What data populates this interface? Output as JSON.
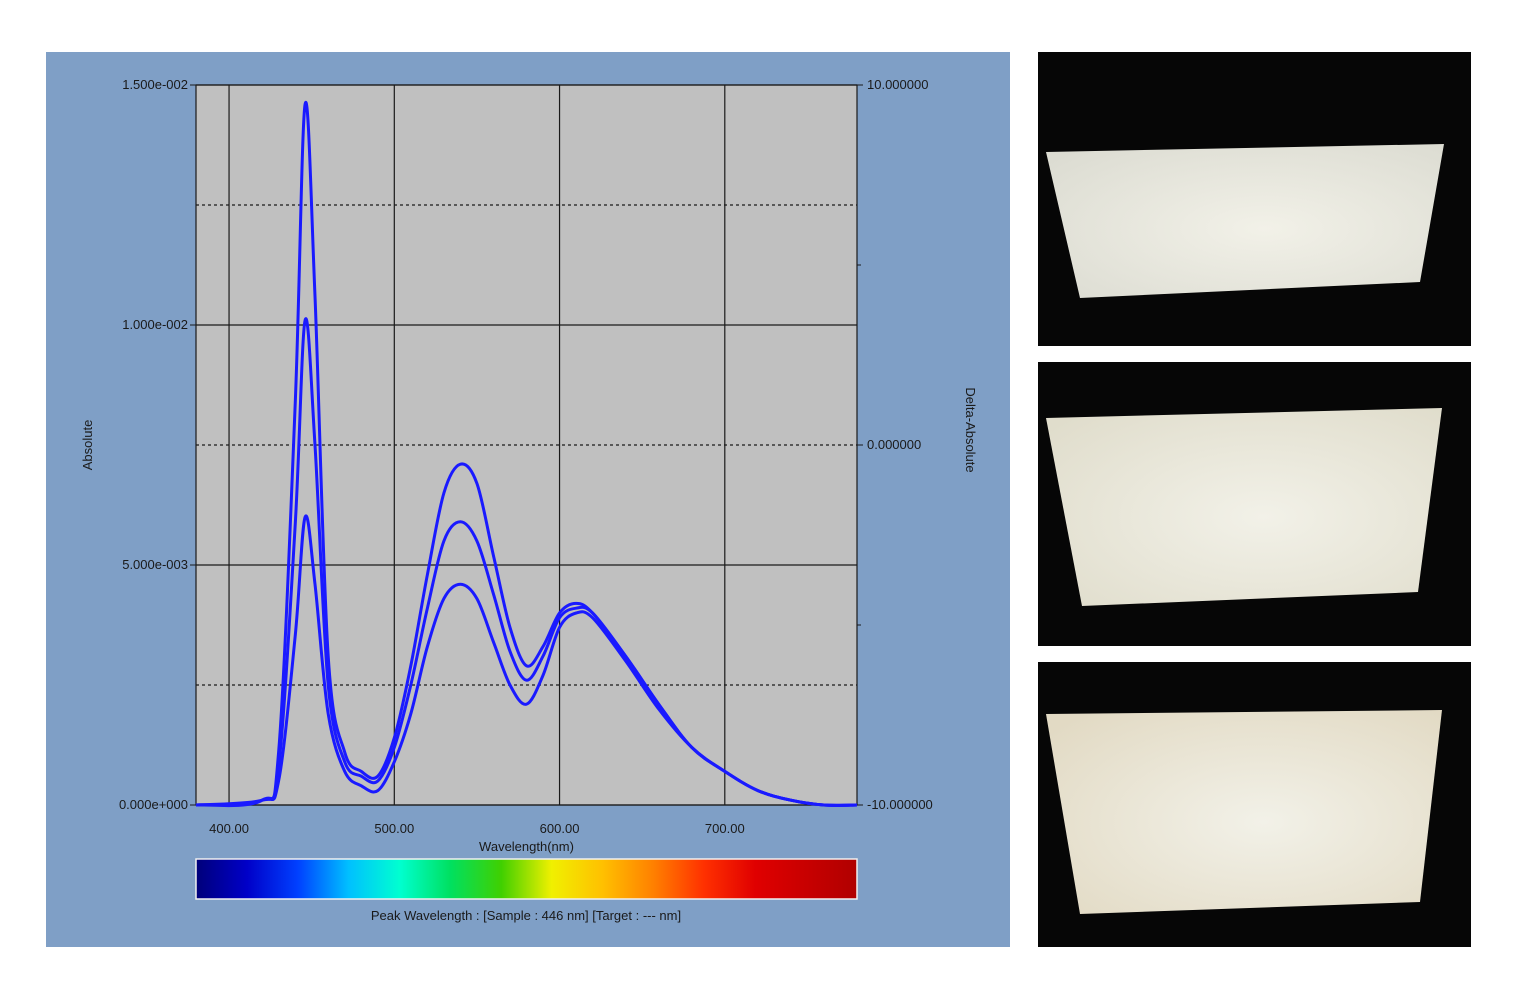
{
  "colors": {
    "panel_background": "#7f9fc6",
    "plot_background": "#c0c0c0",
    "series_color": "#1a1aff",
    "photo_background": "#060606"
  },
  "chart_data": {
    "type": "line",
    "xlabel": "Wavelength(nm)",
    "ylabel": "Absolute",
    "y2label": "Delta-Absolute",
    "xlim": [
      380,
      780
    ],
    "ylim": [
      0,
      0.015
    ],
    "y2lim": [
      -10,
      10
    ],
    "x_ticks": [
      400,
      500,
      600,
      700
    ],
    "x_tick_labels": [
      "400.00",
      "500.00",
      "600.00",
      "700.00"
    ],
    "y_ticks": [
      0,
      0.005,
      0.01,
      0.015
    ],
    "y_tick_labels": [
      "0.000e+000",
      "5.000e-003",
      "1.000e-002",
      "1.500e-002"
    ],
    "y_minor_gridlines": [
      0.0025,
      0.0075,
      0.0125
    ],
    "y2_ticks": [
      -10,
      0,
      10
    ],
    "y2_tick_labels": [
      "-10.000000",
      "0.000000",
      "10.000000"
    ],
    "grid": true,
    "legend": "none",
    "series": [
      {
        "x": [
          380,
          420,
          430,
          440,
          446,
          452,
          460,
          470,
          480,
          490,
          500,
          510,
          520,
          530,
          540,
          550,
          560,
          570,
          580,
          590,
          600,
          610,
          620,
          640,
          660,
          680,
          700,
          720,
          740,
          760,
          780
        ],
        "values": [
          0.0,
          0.0001,
          0.0011,
          0.0083,
          0.0146,
          0.0106,
          0.0031,
          0.0011,
          0.0007,
          0.0006,
          0.0014,
          0.0029,
          0.0048,
          0.0065,
          0.0071,
          0.0067,
          0.0052,
          0.0037,
          0.0029,
          0.0033,
          0.004,
          0.0042,
          0.004,
          0.0031,
          0.0021,
          0.0012,
          0.0007,
          0.0003,
          0.0001,
          0.0,
          0.0
        ]
      },
      {
        "x": [
          380,
          420,
          430,
          440,
          446,
          452,
          460,
          470,
          480,
          490,
          500,
          510,
          520,
          530,
          540,
          550,
          560,
          570,
          580,
          590,
          600,
          610,
          620,
          640,
          660,
          680,
          700,
          720,
          740,
          760,
          780
        ],
        "values": [
          0.0,
          0.0001,
          0.0008,
          0.0058,
          0.0101,
          0.0075,
          0.0025,
          0.0009,
          0.0006,
          0.0005,
          0.0012,
          0.0025,
          0.0041,
          0.0055,
          0.0059,
          0.0055,
          0.0044,
          0.0032,
          0.0026,
          0.0031,
          0.0039,
          0.0041,
          0.004,
          0.0031,
          0.0021,
          0.0012,
          0.0007,
          0.0003,
          0.0001,
          0.0,
          0.0
        ]
      },
      {
        "x": [
          380,
          420,
          430,
          440,
          446,
          452,
          460,
          470,
          480,
          490,
          500,
          510,
          520,
          530,
          540,
          550,
          560,
          570,
          580,
          590,
          600,
          610,
          620,
          640,
          660,
          680,
          700,
          720,
          740,
          760,
          780
        ],
        "values": [
          0.0,
          0.0001,
          0.0005,
          0.0035,
          0.006,
          0.0046,
          0.0019,
          0.0007,
          0.0004,
          0.0003,
          0.0009,
          0.0019,
          0.0033,
          0.0043,
          0.0046,
          0.0043,
          0.0034,
          0.0025,
          0.0021,
          0.0027,
          0.0037,
          0.004,
          0.0039,
          0.003,
          0.002,
          0.0012,
          0.0007,
          0.0003,
          0.0001,
          0.0,
          0.0
        ]
      }
    ],
    "colorbar_stops": [
      "#00007a",
      "#0000c8",
      "#0040ff",
      "#00c0ff",
      "#00ffd0",
      "#00e060",
      "#40d000",
      "#f0f000",
      "#ffc000",
      "#ff8000",
      "#ff3000",
      "#e00000",
      "#c80000",
      "#b00000"
    ],
    "caption": "Peak Wavelength : [Sample : 446 nm] [Target : --- nm]"
  },
  "photos": [
    {
      "name": "panel-photo-1",
      "tint": "#dcdcd2"
    },
    {
      "name": "panel-photo-2",
      "tint": "#e0ddcc"
    },
    {
      "name": "panel-photo-3",
      "tint": "#e2dac4"
    }
  ]
}
